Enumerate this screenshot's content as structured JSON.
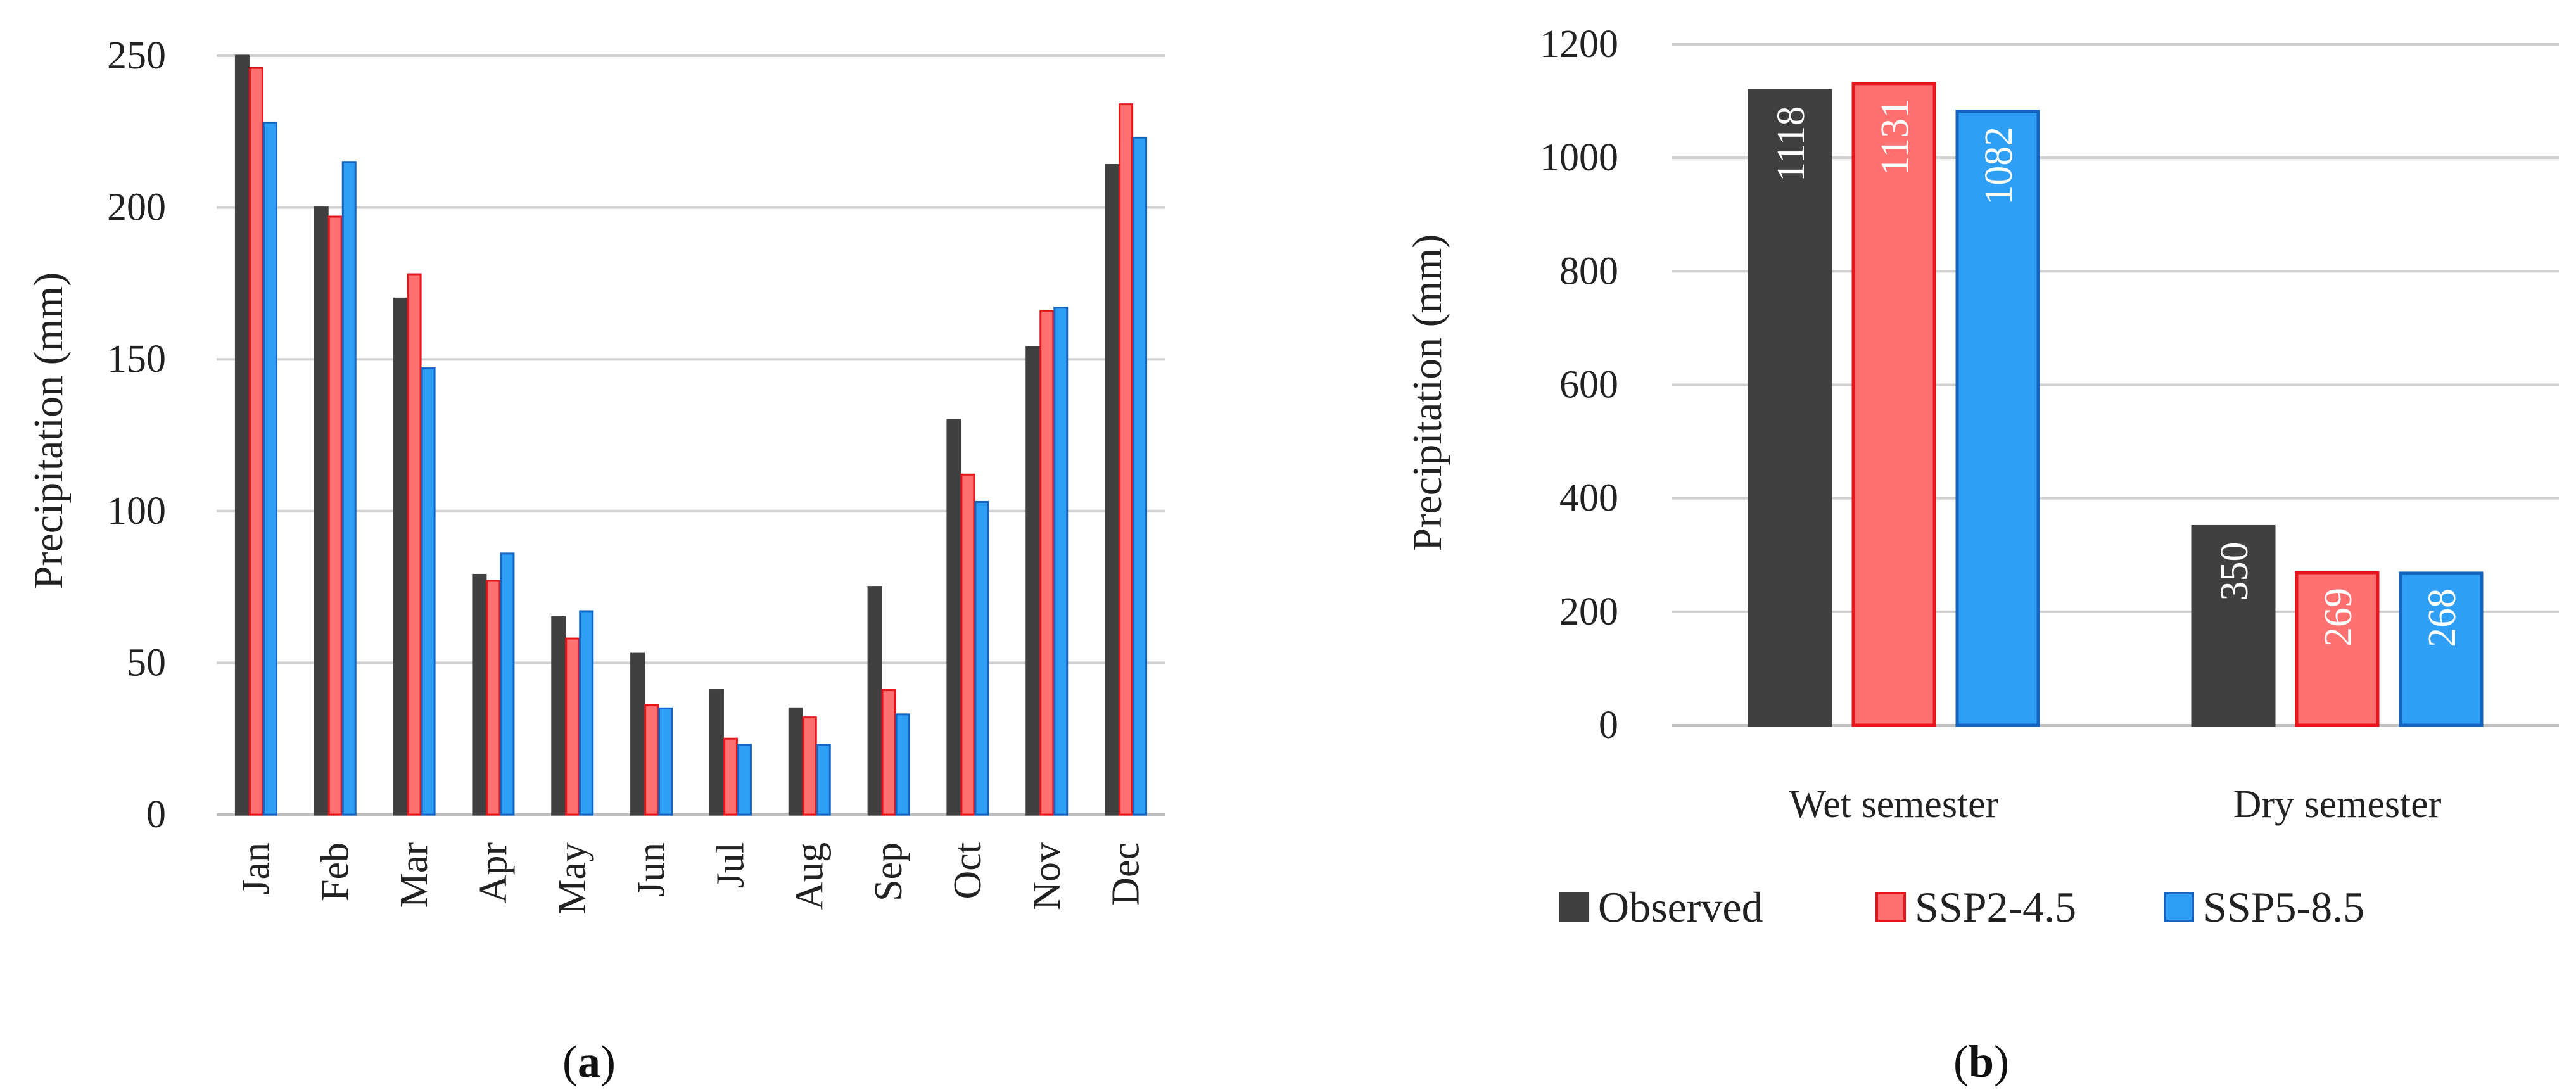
{
  "chart_data": [
    {
      "type": "bar",
      "panel_label": "a",
      "title": "",
      "xlabel": "",
      "ylabel": "Precipitation (mm)",
      "ylim": [
        0,
        250
      ],
      "yticks": [
        0,
        50,
        100,
        150,
        200,
        250
      ],
      "grid": true,
      "categories": [
        "Jan",
        "Feb",
        "Mar",
        "Apr",
        "May",
        "Jun",
        "Jul",
        "Aug",
        "Sep",
        "Oct",
        "Nov",
        "Dec"
      ],
      "series": [
        {
          "name": "Observed",
          "values": [
            250,
            200,
            170,
            79,
            65,
            53,
            41,
            35,
            75,
            130,
            154,
            214
          ]
        },
        {
          "name": "SSP2-4.5",
          "values": [
            246,
            197,
            178,
            77,
            58,
            36,
            25,
            32,
            41,
            112,
            166,
            234
          ]
        },
        {
          "name": "SSP5-8.5",
          "values": [
            228,
            215,
            147,
            86,
            67,
            35,
            23,
            23,
            33,
            103,
            167,
            223
          ]
        }
      ]
    },
    {
      "type": "bar",
      "panel_label": "b",
      "title": "",
      "xlabel": "",
      "ylabel": "Precipitation (mm)",
      "ylim": [
        0,
        1200
      ],
      "yticks": [
        0,
        200,
        400,
        600,
        800,
        1000,
        1200
      ],
      "grid": true,
      "legend_position": "bottom",
      "categories": [
        "Wet semester",
        "Dry semester"
      ],
      "series": [
        {
          "name": "Observed",
          "values": [
            1118,
            350
          ]
        },
        {
          "name": "SSP2-4.5",
          "values": [
            1131,
            269
          ]
        },
        {
          "name": "SSP5-8.5",
          "values": [
            1082,
            268
          ]
        }
      ]
    }
  ],
  "legend": [
    {
      "name": "Observed",
      "fill": "#404040",
      "stroke": "#404040"
    },
    {
      "name": "SSP2-4.5",
      "fill": "#ff7070",
      "stroke": "#e8141b"
    },
    {
      "name": "SSP5-8.5",
      "fill": "#2f9ff5",
      "stroke": "#1565c0"
    }
  ],
  "captions": {
    "a": "a",
    "b": "b"
  }
}
